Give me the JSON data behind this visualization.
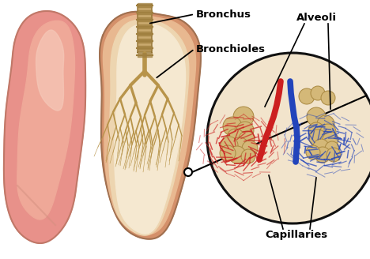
{
  "background_color": "#ffffff",
  "labels": {
    "bronchus": "Bronchus",
    "bronchioles": "Bronchioles",
    "alveoli": "Alveoli",
    "capillaries": "Capillaries"
  },
  "label_fontsize": 9.5,
  "label_fontweight": "bold",
  "lung_left_outer": "#E8918A",
  "lung_left_mid": "#EFA898",
  "lung_left_highlight": "#F5C8B8",
  "lung_right_outer": "#D4906A",
  "lung_right_mid": "#E8B890",
  "lung_right_inner": "#EDD5B0",
  "lung_right_innermost": "#F5E8D0",
  "bronchus_color": "#C9A96E",
  "bronchus_ring_color": "#A08040",
  "bronchioles_color": "#B8944A",
  "circle_bg_color": "#F2E4CC",
  "circle_border_color": "#111111",
  "alveoli_fill": "#D4B878",
  "alveoli_edge": "#A88840",
  "capillary_red": "#CC2020",
  "capillary_blue": "#2244BB",
  "figsize": [
    4.68,
    3.28
  ],
  "dpi": 100
}
